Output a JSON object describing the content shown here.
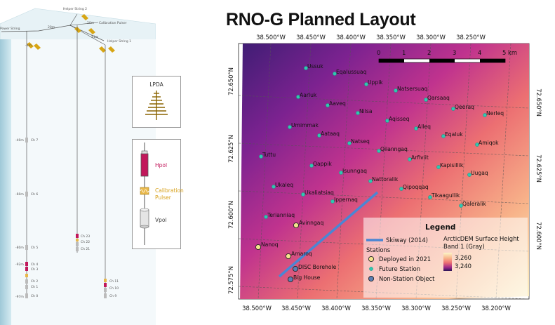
{
  "map": {
    "title": "RNO-G Planned Layout",
    "x_ticks_top": [
      "38.500°W",
      "38.450°W",
      "38.400°W",
      "38.350°W",
      "38.300°W",
      "38.250°W"
    ],
    "x_ticks_bottom": [
      "38.500°W",
      "38.450°W",
      "38.400°W",
      "38.350°W",
      "38.300°W",
      "38.250°W",
      "38.200°W"
    ],
    "y_ticks_left": [
      "72.650°N",
      "72.625°N",
      "72.600°N",
      "72.575°N"
    ],
    "y_ticks_right": [
      "72.650°N",
      "72.625°N",
      "72.600°N"
    ],
    "scale_labels": [
      "0",
      "1",
      "2",
      "3",
      "4",
      "5 km"
    ],
    "future_stations": [
      "Ussuk",
      "Eqalussuaq",
      "Uppik",
      "Natsersuaq",
      "Aarluk",
      "Qarsaaq",
      "Aaveq",
      "Qeeraq",
      "Nerleq",
      "Nilsa",
      "Aqisseq",
      "Alleq",
      "Umimmak",
      "Aataaq",
      "Eqaluk",
      "Natseq",
      "Amiqok",
      "Qilanngaq",
      "Tuttu",
      "Arfiviit",
      "Qappik",
      "Kapisillik",
      "Isunngaq",
      "Uugaq",
      "Nattoralik",
      "Ukaleq",
      "Qipoqqaq",
      "Ukaliatsiaq",
      "Tikaagullik",
      "Ippernaq",
      "Qaleralik",
      "Terianniaq"
    ],
    "deployed_stations": [
      "Avinngaq",
      "Nanoq",
      "Amaroq"
    ],
    "non_station_objects": [
      "DISC Borehole",
      "Big House"
    ],
    "legend": {
      "title": "Legend",
      "skiway": "Skiway (2014)",
      "stations_header": "Stations",
      "deployed": "Deployed in  2021",
      "future": "Future Station",
      "non_station": "Non-Station Object",
      "dem_title_1": "ArcticDEM Surface Height",
      "dem_title_2": "Band 1 (Gray)",
      "dem_max": "3,260",
      "dem_min": "3,240"
    },
    "colors": {
      "future": "#30c7b0",
      "deployed": "#f4e48c",
      "non_station": "#5a7fb4",
      "skiway": "#4a86d4"
    }
  },
  "station_diagram": {
    "labels": {
      "helper_string_2": "Helper String 2",
      "calibration_pulser": "Calibration Pulser",
      "power_string": "Power String",
      "helper_string_1": "Helper String 1",
      "d_20m_a": "20m",
      "d_20m_b": "20m",
      "d_11m": "11m",
      "d_3m": "-3m"
    },
    "depths": [
      "-40m",
      "-60m",
      "-80m",
      "-92m",
      "-97m"
    ],
    "channels": [
      "Ch 7",
      "Ch 6",
      "Ch 5",
      "Ch 4",
      "Ch 3",
      "Ch 2",
      "Ch 1",
      "Ch 0"
    ],
    "helper_channels": [
      "Ch 23",
      "Ch 22",
      "Ch 21"
    ],
    "helper1_channels": [
      "Ch 11",
      "Ch 10",
      "Ch 9"
    ]
  },
  "key_lpda": {
    "label": "LPDA"
  },
  "key_antennas": {
    "hpol": "Hpol",
    "calibration": "Calibration",
    "pulser": "Pulser",
    "vpol": "Vpol"
  }
}
